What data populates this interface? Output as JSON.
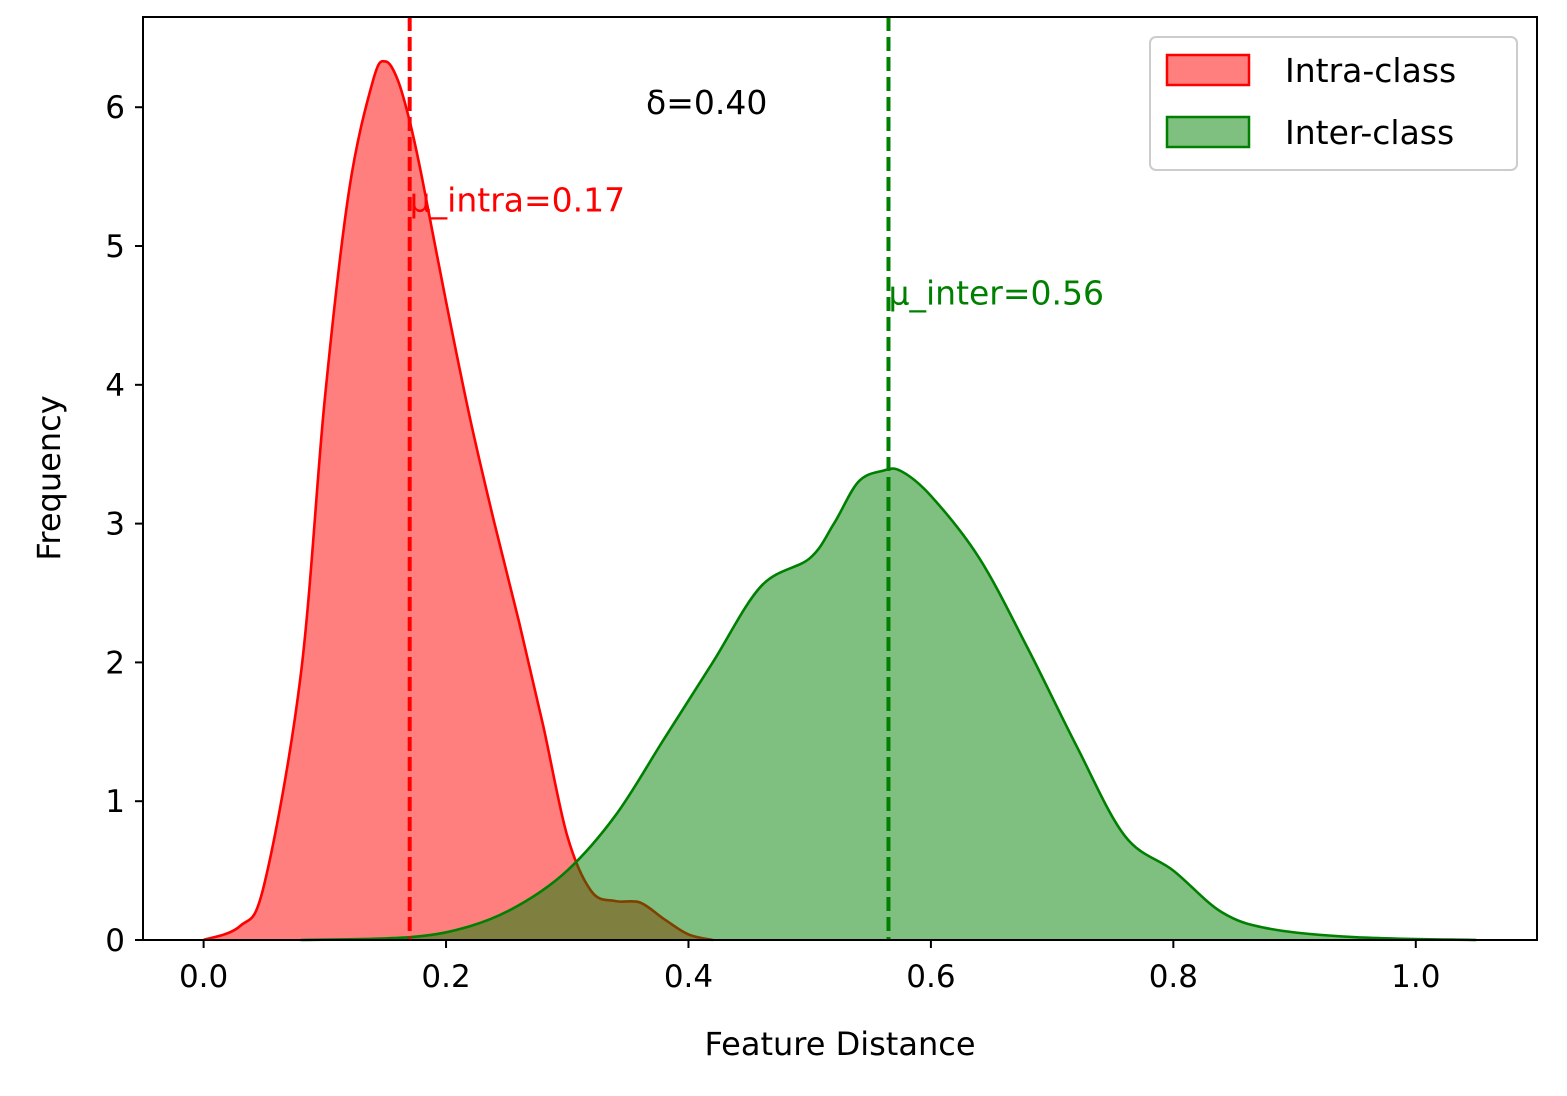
{
  "chart_data": {
    "type": "area",
    "title": "",
    "xlabel": "Feature Distance",
    "ylabel": "Frequency",
    "xlim": [
      -0.05,
      1.1
    ],
    "ylim": [
      0,
      6.65
    ],
    "xticks": [
      0.0,
      0.2,
      0.4,
      0.6,
      0.8,
      1.0
    ],
    "xtick_labels": [
      "0.0",
      "0.2",
      "0.4",
      "0.6",
      "0.8",
      "1.0"
    ],
    "yticks": [
      0,
      1,
      2,
      3,
      4,
      5,
      6
    ],
    "ytick_labels": [
      "0",
      "1",
      "2",
      "3",
      "4",
      "5",
      "6"
    ],
    "grid": false,
    "legend_position": "top-right",
    "series": [
      {
        "name": "Intra-class",
        "color": "#ff0000",
        "fill_opacity": 0.5,
        "x": [
          0.0,
          0.03,
          0.05,
          0.08,
          0.1,
          0.12,
          0.14,
          0.15,
          0.16,
          0.17,
          0.18,
          0.2,
          0.22,
          0.24,
          0.26,
          0.28,
          0.3,
          0.32,
          0.34,
          0.36,
          0.38,
          0.4,
          0.42
        ],
        "y": [
          0.0,
          0.1,
          0.4,
          1.9,
          3.9,
          5.4,
          6.2,
          6.33,
          6.2,
          5.9,
          5.5,
          4.6,
          3.75,
          3.0,
          2.3,
          1.55,
          0.75,
          0.35,
          0.28,
          0.27,
          0.15,
          0.04,
          0.0
        ]
      },
      {
        "name": "Inter-class",
        "color": "#008000",
        "fill_opacity": 0.5,
        "x": [
          0.08,
          0.17,
          0.22,
          0.26,
          0.3,
          0.34,
          0.38,
          0.42,
          0.46,
          0.5,
          0.52,
          0.54,
          0.56,
          0.575,
          0.6,
          0.64,
          0.68,
          0.72,
          0.76,
          0.8,
          0.84,
          0.88,
          0.95,
          1.05
        ],
        "y": [
          0.0,
          0.02,
          0.1,
          0.25,
          0.5,
          0.9,
          1.45,
          2.0,
          2.55,
          2.75,
          3.0,
          3.3,
          3.38,
          3.38,
          3.2,
          2.75,
          2.1,
          1.4,
          0.75,
          0.5,
          0.2,
          0.08,
          0.02,
          0.0
        ]
      }
    ],
    "vlines": [
      {
        "x": 0.17,
        "color": "#ff0000",
        "style": "dashed",
        "label": "µ_intra=0.17"
      },
      {
        "x": 0.565,
        "color": "#008000",
        "style": "dashed",
        "label": "µ_inter=0.56"
      }
    ],
    "annotations": [
      {
        "text": "µ_intra=0.17",
        "x": 0.17,
        "y": 5.25,
        "color": "#ff0000"
      },
      {
        "text": "µ_inter=0.56",
        "x": 0.565,
        "y": 4.58,
        "color": "#008000"
      },
      {
        "text": "δ=0.40",
        "x": 0.365,
        "y": 5.95,
        "color": "#000000"
      }
    ]
  }
}
